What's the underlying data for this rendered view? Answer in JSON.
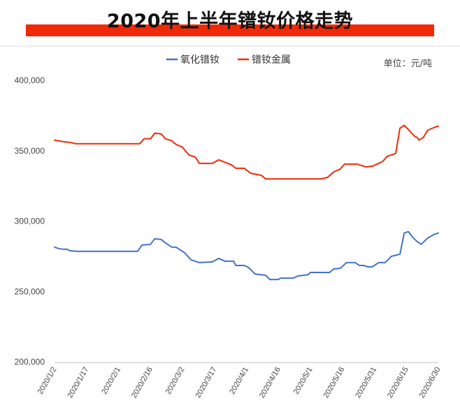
{
  "header": {
    "title": "2020年上半年镨钕价格走势",
    "unit": "单位：元/吨",
    "accent_color": "#f02a08"
  },
  "chart_data": {
    "type": "line",
    "title": "2020年上半年镨钕价格走势",
    "ylabel": "",
    "xlabel": "",
    "ylim": [
      200000,
      400000
    ],
    "yticks": [
      200000,
      250000,
      300000,
      350000,
      400000
    ],
    "ytick_labels": [
      "200,000",
      "250,000",
      "300,000",
      "350,000",
      "400,000"
    ],
    "xlim": [
      "2020-01-02",
      "2020-06-30"
    ],
    "xticks": [
      "2020-01-02",
      "2020-01-17",
      "2020-02-01",
      "2020-02-16",
      "2020-03-02",
      "2020-03-17",
      "2020-04-01",
      "2020-04-16",
      "2020-05-01",
      "2020-05-16",
      "2020-05-31",
      "2020-06-15",
      "2020-06-30"
    ],
    "xtick_labels": [
      "2020/1/2",
      "2020/1/17",
      "2020/2/1",
      "2020/2/16",
      "2020/3/2",
      "2020/3/17",
      "2020/4/1",
      "2020/4/16",
      "2020/5/1",
      "2020/5/16",
      "2020/5/31",
      "2020/6/15",
      "2020/6/30"
    ],
    "legend_position": "top-center",
    "grid": false,
    "series": [
      {
        "name": "氧化镨钕",
        "color": "#4472c4",
        "points": [
          [
            "2020-01-02",
            281500
          ],
          [
            "2020-01-04",
            280500
          ],
          [
            "2020-01-06",
            280000
          ],
          [
            "2020-01-08",
            280000
          ],
          [
            "2020-01-09",
            279000
          ],
          [
            "2020-01-12",
            278500
          ],
          [
            "2020-01-17",
            278500
          ],
          [
            "2020-02-10",
            278500
          ],
          [
            "2020-02-12",
            283000
          ],
          [
            "2020-02-16",
            283500
          ],
          [
            "2020-02-18",
            287500
          ],
          [
            "2020-02-21",
            287000
          ],
          [
            "2020-02-23",
            284500
          ],
          [
            "2020-02-26",
            281500
          ],
          [
            "2020-02-28",
            281500
          ],
          [
            "2020-03-03",
            277500
          ],
          [
            "2020-03-06",
            272500
          ],
          [
            "2020-03-10",
            270500
          ],
          [
            "2020-03-16",
            271000
          ],
          [
            "2020-03-19",
            273500
          ],
          [
            "2020-03-22",
            271500
          ],
          [
            "2020-03-26",
            271500
          ],
          [
            "2020-03-27",
            268500
          ],
          [
            "2020-03-31",
            268500
          ],
          [
            "2020-04-02",
            267000
          ],
          [
            "2020-04-05",
            262500
          ],
          [
            "2020-04-10",
            261500
          ],
          [
            "2020-04-12",
            258500
          ],
          [
            "2020-04-16",
            258500
          ],
          [
            "2020-04-17",
            259500
          ],
          [
            "2020-04-23",
            259500
          ],
          [
            "2020-04-25",
            261000
          ],
          [
            "2020-04-30",
            262000
          ],
          [
            "2020-05-01",
            263500
          ],
          [
            "2020-05-10",
            263500
          ],
          [
            "2020-05-12",
            266000
          ],
          [
            "2020-05-15",
            266500
          ],
          [
            "2020-05-18",
            270500
          ],
          [
            "2020-05-22",
            270500
          ],
          [
            "2020-05-24",
            268500
          ],
          [
            "2020-05-26",
            268500
          ],
          [
            "2020-05-28",
            267500
          ],
          [
            "2020-05-30",
            267500
          ],
          [
            "2020-06-02",
            270500
          ],
          [
            "2020-06-05",
            270500
          ],
          [
            "2020-06-08",
            275000
          ],
          [
            "2020-06-12",
            276500
          ],
          [
            "2020-06-14",
            291500
          ],
          [
            "2020-06-16",
            292500
          ],
          [
            "2020-06-18",
            288500
          ],
          [
            "2020-06-20",
            285500
          ],
          [
            "2020-06-22",
            283500
          ],
          [
            "2020-06-25",
            288000
          ],
          [
            "2020-06-28",
            290500
          ],
          [
            "2020-06-30",
            291500
          ]
        ]
      },
      {
        "name": "镨钕金属",
        "color": "#f02a08",
        "points": [
          [
            "2020-01-02",
            357500
          ],
          [
            "2020-01-06",
            356500
          ],
          [
            "2020-01-09",
            356000
          ],
          [
            "2020-01-12",
            355000
          ],
          [
            "2020-01-17",
            355000
          ],
          [
            "2020-02-11",
            355000
          ],
          [
            "2020-02-13",
            358500
          ],
          [
            "2020-02-16",
            358500
          ],
          [
            "2020-02-18",
            362500
          ],
          [
            "2020-02-21",
            362000
          ],
          [
            "2020-02-23",
            358500
          ],
          [
            "2020-02-26",
            357000
          ],
          [
            "2020-02-28",
            354500
          ],
          [
            "2020-03-02",
            352500
          ],
          [
            "2020-03-05",
            347000
          ],
          [
            "2020-03-08",
            345500
          ],
          [
            "2020-03-10",
            341000
          ],
          [
            "2020-03-16",
            341000
          ],
          [
            "2020-03-19",
            343500
          ],
          [
            "2020-03-25",
            340000
          ],
          [
            "2020-03-27",
            337500
          ],
          [
            "2020-03-31",
            337500
          ],
          [
            "2020-04-03",
            334000
          ],
          [
            "2020-04-08",
            332500
          ],
          [
            "2020-04-10",
            330000
          ],
          [
            "2020-05-06",
            330000
          ],
          [
            "2020-05-09",
            331000
          ],
          [
            "2020-05-12",
            335000
          ],
          [
            "2020-05-15",
            337000
          ],
          [
            "2020-05-17",
            340500
          ],
          [
            "2020-05-23",
            340500
          ],
          [
            "2020-05-25",
            339500
          ],
          [
            "2020-05-27",
            338500
          ],
          [
            "2020-05-30",
            339000
          ],
          [
            "2020-06-02",
            341000
          ],
          [
            "2020-06-04",
            342500
          ],
          [
            "2020-06-06",
            346000
          ],
          [
            "2020-06-10",
            348000
          ],
          [
            "2020-06-12",
            366000
          ],
          [
            "2020-06-14",
            368000
          ],
          [
            "2020-06-16",
            365000
          ],
          [
            "2020-06-19",
            360000
          ],
          [
            "2020-06-20",
            359500
          ],
          [
            "2020-06-21",
            357500
          ],
          [
            "2020-06-23",
            359500
          ],
          [
            "2020-06-25",
            364500
          ],
          [
            "2020-06-28",
            366500
          ],
          [
            "2020-06-30",
            367500
          ]
        ]
      }
    ]
  }
}
